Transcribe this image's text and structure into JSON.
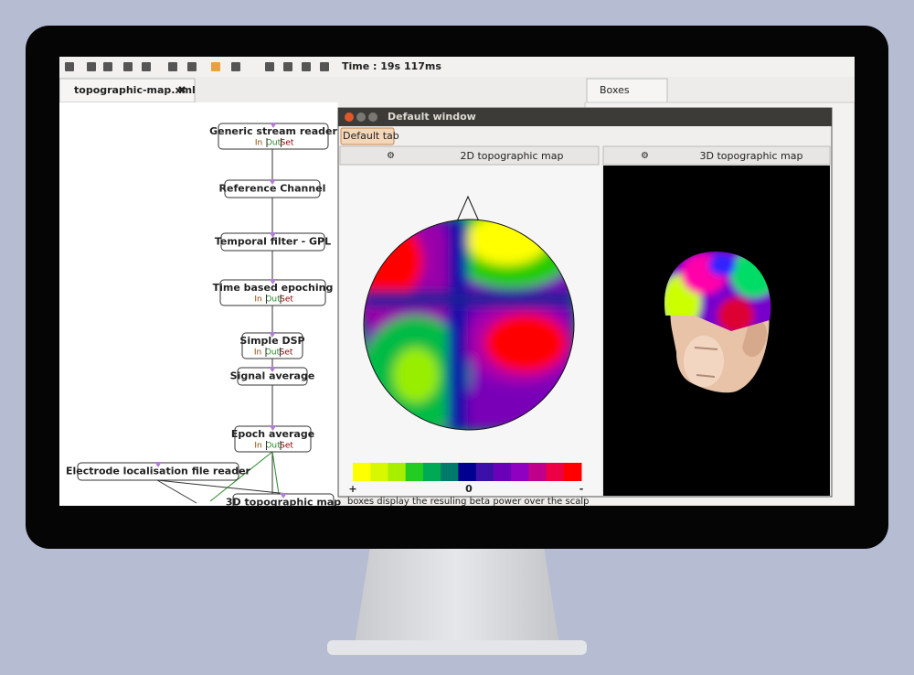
{
  "toolbar": {
    "time": "Time : 19s 117ms"
  },
  "tabs": {
    "scenario": "topographic-map.xml",
    "boxes": "Boxes"
  },
  "scenario": {
    "nodes": [
      {
        "label": "Generic stream reader",
        "ports": [
          "In",
          "Out",
          "Set"
        ]
      },
      {
        "label": "Reference Channel"
      },
      {
        "label": "Temporal filter - GPL"
      },
      {
        "label": "Time based epoching",
        "ports": [
          "In",
          "Out",
          "Set"
        ]
      },
      {
        "label": "Simple DSP",
        "ports": [
          "In",
          "Out",
          "Set"
        ]
      },
      {
        "label": "Signal average"
      },
      {
        "label": "Epoch average",
        "ports": [
          "In",
          "Out",
          "Set"
        ]
      },
      {
        "label": "Electrode localisation file reader"
      },
      {
        "label": "3D topographic map"
      }
    ]
  },
  "window": {
    "title": "Default window",
    "tab": "Default tab",
    "panels": [
      "2D topographic map",
      "3D topographic map"
    ],
    "colorbar": [
      "+",
      "0",
      "-"
    ]
  },
  "comment": "boxes display the resuling beta power over the scalp"
}
